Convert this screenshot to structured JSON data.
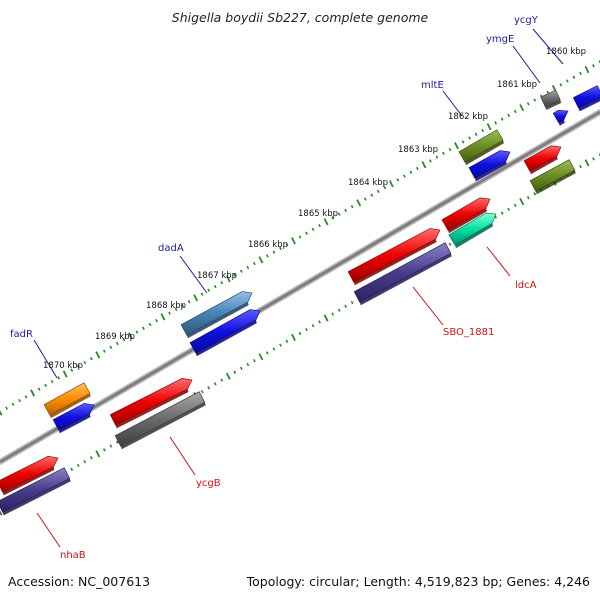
{
  "title": "Shigella boydii Sb227, complete genome",
  "footer": {
    "accession": "Accession: NC_007613",
    "summary": "Topology: circular; Length: 4,519,823 bp; Genes: 4,246"
  },
  "chart_data": {
    "type": "genome-map",
    "topology": "circular",
    "length_bp": 4519823,
    "genes_total": 4246,
    "scale_labels": [
      "1860 kbp",
      "1861 kbp",
      "1862 kbp",
      "1863 kbp",
      "1864 kbp",
      "1865 kbp",
      "1866 kbp",
      "1867 kbp",
      "1868 kbp",
      "1869 kbp",
      "1870 kbp"
    ],
    "forward_genes": [
      {
        "name": "ycgY",
        "color": "#1010e0"
      },
      {
        "name": "ymgE",
        "color": "#6a6a6a"
      },
      {
        "name": "mltE",
        "color": "#6b8e23"
      },
      {
        "name": "dadA",
        "color": "#4682b4"
      },
      {
        "name": "fadR",
        "color": "#ff8c00"
      }
    ],
    "reverse_genes": [
      {
        "name": "ldcA",
        "color": "#00e0a0"
      },
      {
        "name": "SBO_1881",
        "color": "#e00000"
      },
      {
        "name": "ycgB",
        "color": "#e00000"
      },
      {
        "name": "nhaB",
        "color": "#e00000"
      }
    ],
    "colors": {
      "backbone": "#8a8a8a",
      "tick_dots": "#228b22",
      "cds_blue": "#1010e0",
      "cds_red": "#e00000",
      "cds_purple": "#483d8b",
      "cds_olive": "#6b8e23",
      "cds_grey": "#6a6a6a"
    }
  }
}
